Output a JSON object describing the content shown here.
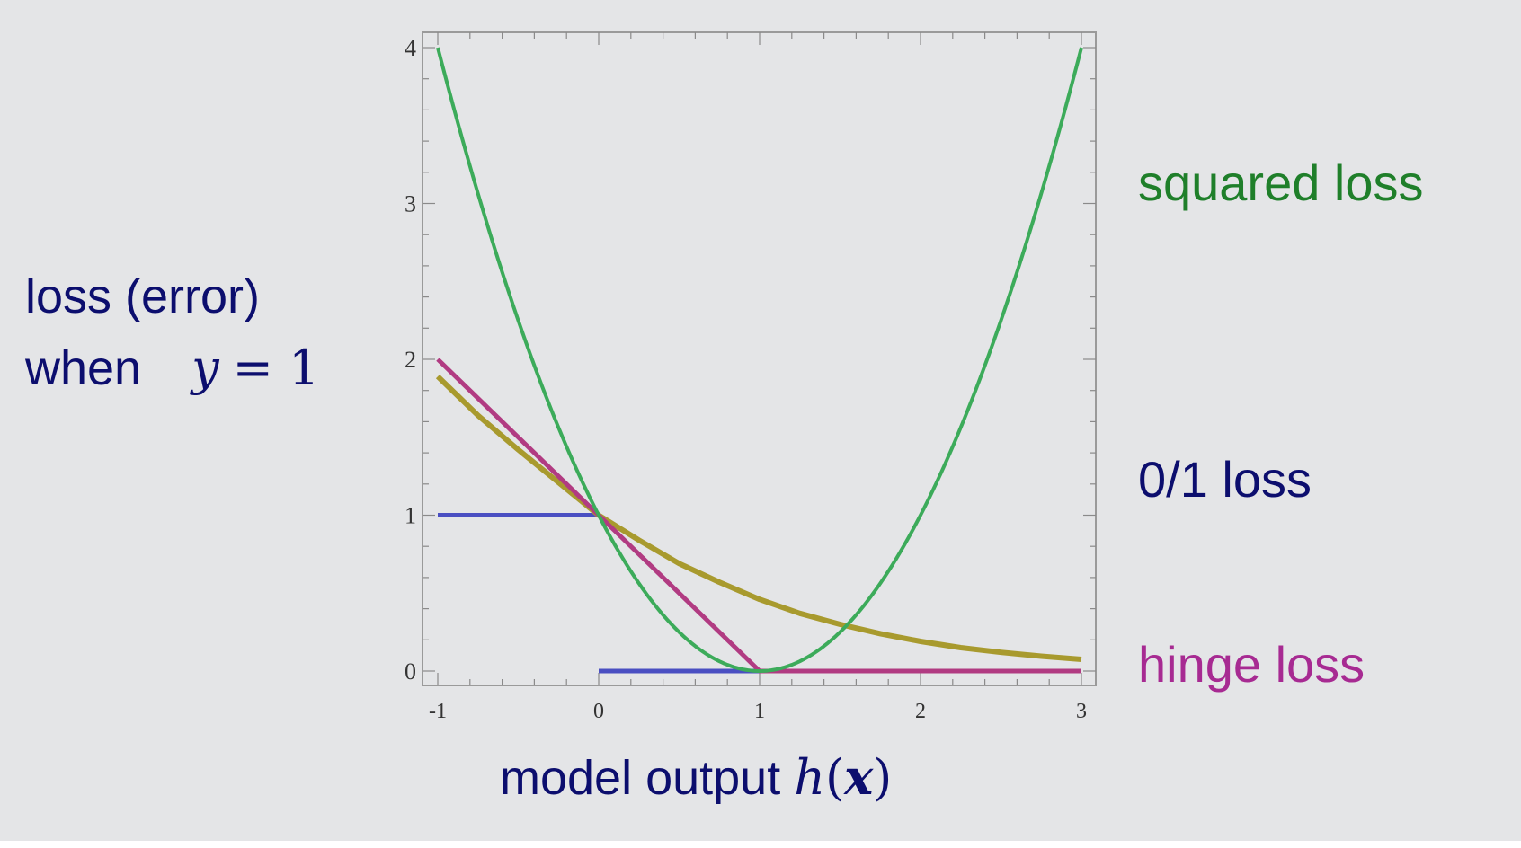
{
  "colors": {
    "background": "#e4e5e7",
    "label_navy": "#0c0e6e",
    "squared": "#3cab5a",
    "squared_label": "#1f7f2a",
    "hinge": "#b13b82",
    "hinge_label": "#a72a92",
    "zero_one": "#4a4fc2",
    "exp": "#a89a2e",
    "axes": "#8a8a8a"
  },
  "labels": {
    "ylabel_line1": "loss (error)",
    "ylabel_line2_text": "when",
    "ylabel_line2_math_y": "y",
    "ylabel_line2_math_rest": "= 1",
    "xlabel_text": "model output",
    "xlabel_math_h": "h",
    "xlabel_math_open": "(",
    "xlabel_math_x": "x",
    "xlabel_math_close": ")"
  },
  "legend": {
    "squared": "squared loss",
    "zero_one": "0/1 loss",
    "hinge": "hinge loss"
  },
  "chart_data": {
    "type": "line",
    "xlim": [
      -1,
      3
    ],
    "ylim": [
      0,
      4
    ],
    "x_ticks": [
      "-1",
      "0",
      "1",
      "2",
      "3"
    ],
    "y_ticks": [
      "0",
      "1",
      "2",
      "3",
      "4"
    ],
    "grid": false,
    "series": [
      {
        "name": "squared loss",
        "color": "#3cab5a",
        "x": [
          -1,
          -0.75,
          -0.5,
          -0.25,
          0,
          0.25,
          0.5,
          0.75,
          1,
          1.25,
          1.5,
          1.75,
          2,
          2.25,
          2.5,
          2.75,
          3
        ],
        "y": [
          4,
          3.0625,
          2.25,
          1.5625,
          1,
          0.5625,
          0.25,
          0.0625,
          0,
          0.0625,
          0.25,
          0.5625,
          1,
          1.5625,
          2.25,
          3.0625,
          4
        ]
      },
      {
        "name": "hinge loss",
        "color": "#b13b82",
        "x": [
          -1,
          0,
          1,
          3
        ],
        "y": [
          2,
          1,
          0,
          0
        ]
      },
      {
        "name": "0/1 loss",
        "color": "#4a4fc2",
        "segments": [
          {
            "x": [
              -1,
              0
            ],
            "y": [
              1,
              1
            ]
          },
          {
            "x": [
              0,
              3
            ],
            "y": [
              0,
              0
            ]
          }
        ]
      },
      {
        "color": "#a89a2e",
        "x": [
          -1,
          -0.75,
          -0.5,
          -0.25,
          0,
          0.25,
          0.5,
          0.75,
          1,
          1.25,
          1.5,
          1.75,
          2,
          2.25,
          2.5,
          2.75,
          3
        ],
        "y": [
          1.89,
          1.64,
          1.42,
          1.21,
          1.0,
          0.84,
          0.69,
          0.57,
          0.46,
          0.37,
          0.3,
          0.24,
          0.19,
          0.15,
          0.12,
          0.095,
          0.075
        ]
      }
    ]
  }
}
